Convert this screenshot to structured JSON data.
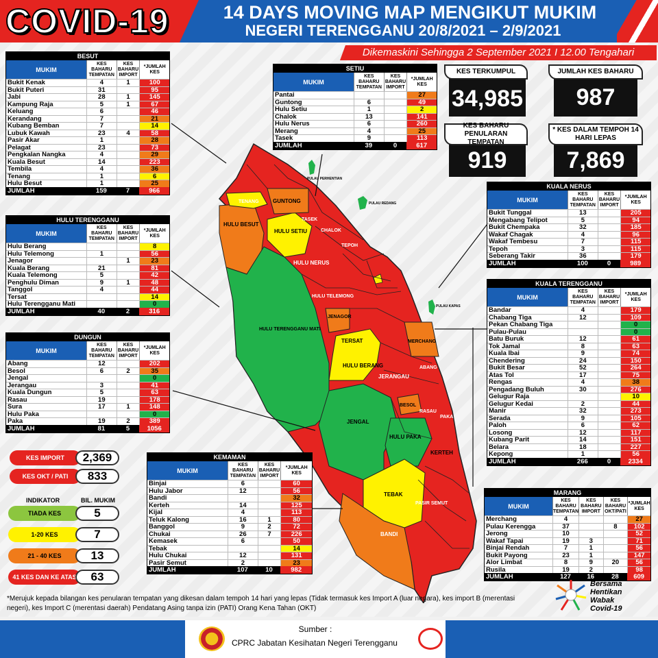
{
  "header": {
    "title": "COVID-19",
    "line1": "14 DAYS MOVING MAP MENGIKUT MUKIM",
    "line2": "NEGERI TERENGGANU 20/8/2021 – 2/9/2021",
    "updated": "Dikemaskini Sehingga 2 September 2021 I 12.00 Tengahari"
  },
  "columns": {
    "mukim": "MUKIM",
    "tempatan": "KES BAHARU TEMPATAN",
    "import": "KES BAHARU IMPORT",
    "okt": "KES BAHARU OKT/PATI",
    "jumlah": "*JUMLAH KES",
    "total_label": "JUMLAH"
  },
  "stats": {
    "terkumpul_label": "KES TERKUMPUL",
    "terkumpul": "34,985",
    "baharu_label": "JUMLAH KES BAHARU",
    "baharu": "987",
    "tempatan_label": "KES BAHARU PENULARAN TEMPATAN",
    "tempatan": "919",
    "tempoh_label": "* KES DALAM TEMPOH 14 HARI LEPAS",
    "tempoh": "7,869"
  },
  "side": {
    "import_label": "KES IMPORT",
    "import": "2,369",
    "okt_label": "KES OKT / PATI",
    "okt": "833",
    "indikator": "INDIKATOR",
    "bil": "BIL. MUKIM",
    "legend": [
      {
        "label": "TIADA KES",
        "count": "5",
        "color": "#8cc63f"
      },
      {
        "label": "1-20 KES",
        "count": "7",
        "color": "#fff200"
      },
      {
        "label": "21 - 40 KES",
        "count": "13",
        "color": "#f07b1a"
      },
      {
        "label": "41 KES DAN KE ATAS",
        "count": "63",
        "color": "#e52420"
      }
    ]
  },
  "tables": {
    "besut": {
      "title": "BESUT",
      "rows": [
        [
          "Bukit Kenak",
          "4",
          "1",
          "100",
          "r"
        ],
        [
          "Bukit Puteri",
          "31",
          "",
          "95",
          "r"
        ],
        [
          "Jabi",
          "28",
          "1",
          "145",
          "r"
        ],
        [
          "Kampung Raja",
          "5",
          "1",
          "67",
          "r"
        ],
        [
          "Keluang",
          "6",
          "",
          "46",
          "r"
        ],
        [
          "Kerandang",
          "7",
          "",
          "21",
          "o"
        ],
        [
          "Kubang Bemban",
          "7",
          "",
          "14",
          "y"
        ],
        [
          "Lubuk Kawah",
          "23",
          "4",
          "58",
          "r"
        ],
        [
          "Pasir Akar",
          "1",
          "",
          "28",
          "o"
        ],
        [
          "Pelagat",
          "23",
          "",
          "73",
          "r"
        ],
        [
          "Pengkalan Nangka",
          "4",
          "",
          "29",
          "o"
        ],
        [
          "Kuala Besut",
          "14",
          "",
          "223",
          "r"
        ],
        [
          "Tembila",
          "4",
          "",
          "36",
          "o"
        ],
        [
          "Tenang",
          "1",
          "",
          "6",
          "y"
        ],
        [
          "Hulu Besut",
          "1",
          "",
          "25",
          "o"
        ]
      ],
      "total": [
        "159",
        "7",
        "966"
      ]
    },
    "setiu": {
      "title": "SETIU",
      "rows": [
        [
          "Pantai",
          "",
          "",
          "27",
          "o"
        ],
        [
          "Guntong",
          "6",
          "",
          "49",
          "r"
        ],
        [
          "Hulu Setiu",
          "1",
          "",
          "2",
          "y"
        ],
        [
          "Chalok",
          "13",
          "",
          "141",
          "r"
        ],
        [
          "Hulu Nerus",
          "6",
          "",
          "260",
          "r"
        ],
        [
          "Merang",
          "4",
          "",
          "25",
          "o"
        ],
        [
          "Tasek",
          "9",
          "",
          "113",
          "r"
        ]
      ],
      "total": [
        "39",
        "0",
        "617"
      ]
    },
    "hulu_terengganu": {
      "title": "HULU TERENGGANU",
      "rows": [
        [
          "Hulu Berang",
          "",
          "",
          "8",
          "y"
        ],
        [
          "Hulu Telemong",
          "1",
          "",
          "56",
          "r"
        ],
        [
          "Jenagor",
          "",
          "1",
          "23",
          "o"
        ],
        [
          "Kuala Berang",
          "21",
          "",
          "81",
          "r"
        ],
        [
          "Kuala Telemong",
          "5",
          "",
          "42",
          "r"
        ],
        [
          "Penghulu Diman",
          "9",
          "1",
          "48",
          "r"
        ],
        [
          "Tanggol",
          "4",
          "",
          "44",
          "r"
        ],
        [
          "Tersat",
          "",
          "",
          "14",
          "y"
        ],
        [
          "Hulu Terengganu Mati",
          "",
          "",
          "0",
          "g"
        ]
      ],
      "total": [
        "40",
        "2",
        "316"
      ]
    },
    "dungun": {
      "title": "DUNGUN",
      "rows": [
        [
          "Abang",
          "12",
          "",
          "202",
          "r"
        ],
        [
          "Besol",
          "6",
          "2",
          "35",
          "o"
        ],
        [
          "Jengal",
          "",
          "",
          "0",
          "g"
        ],
        [
          "Jerangau",
          "3",
          "",
          "41",
          "r"
        ],
        [
          "Kuala Dungun",
          "5",
          "",
          "63",
          "r"
        ],
        [
          "Rasau",
          "19",
          "",
          "178",
          "r"
        ],
        [
          "Sura",
          "17",
          "1",
          "148",
          "r"
        ],
        [
          "Hulu Paka",
          "",
          "",
          "0",
          "g"
        ],
        [
          "Paka",
          "19",
          "2",
          "389",
          "r"
        ]
      ],
      "total": [
        "81",
        "5",
        "1056"
      ]
    },
    "kemaman": {
      "title": "KEMAMAN",
      "rows": [
        [
          "Binjai",
          "6",
          "",
          "60",
          "r"
        ],
        [
          "Hulu Jabor",
          "12",
          "",
          "56",
          "r"
        ],
        [
          "Bandi",
          "",
          "",
          "32",
          "o"
        ],
        [
          "Kerteh",
          "14",
          "",
          "125",
          "r"
        ],
        [
          "Kijal",
          "4",
          "",
          "113",
          "r"
        ],
        [
          "Teluk Kalong",
          "16",
          "1",
          "80",
          "r"
        ],
        [
          "Banggol",
          "9",
          "2",
          "72",
          "r"
        ],
        [
          "Chukai",
          "26",
          "7",
          "226",
          "r"
        ],
        [
          "Kemasek",
          "6",
          "",
          "50",
          "r"
        ],
        [
          "Tebak",
          "",
          "",
          "14",
          "y"
        ],
        [
          "Hulu Chukai",
          "12",
          "",
          "131",
          "r"
        ],
        [
          "Pasir Semut",
          "2",
          "",
          "23",
          "o"
        ]
      ],
      "total": [
        "107",
        "10",
        "982"
      ]
    },
    "kuala_nerus": {
      "title": "KUALA NERUS",
      "rows": [
        [
          "Bukit Tunggal",
          "13",
          "",
          "205",
          "r"
        ],
        [
          "Mengabang Telipot",
          "5",
          "",
          "94",
          "r"
        ],
        [
          "Bukit Chempaka",
          "32",
          "",
          "185",
          "r"
        ],
        [
          "Wakaf Chagak",
          "4",
          "",
          "96",
          "r"
        ],
        [
          "Wakaf Tembesu",
          "7",
          "",
          "115",
          "r"
        ],
        [
          "Tepoh",
          "3",
          "",
          "115",
          "r"
        ],
        [
          "Seberang Takir",
          "36",
          "",
          "179",
          "r"
        ]
      ],
      "total": [
        "100",
        "0",
        "989"
      ]
    },
    "kuala_terengganu": {
      "title": "KUALA TERENGGANU",
      "rows": [
        [
          "Bandar",
          "4",
          "",
          "179",
          "r"
        ],
        [
          "Chabang Tiga",
          "12",
          "",
          "109",
          "r"
        ],
        [
          "Pekan Chabang Tiga",
          "",
          "",
          "0",
          "g"
        ],
        [
          "Pulau-Pulau",
          "",
          "",
          "0",
          "g"
        ],
        [
          "Batu Buruk",
          "12",
          "",
          "61",
          "r"
        ],
        [
          "Tok Jamal",
          "8",
          "",
          "63",
          "r"
        ],
        [
          "Kuala Ibai",
          "9",
          "",
          "74",
          "r"
        ],
        [
          "Chendering",
          "24",
          "",
          "150",
          "r"
        ],
        [
          "Bukit Besar",
          "52",
          "",
          "264",
          "r"
        ],
        [
          "Atas Tol",
          "17",
          "",
          "75",
          "r"
        ],
        [
          "Rengas",
          "4",
          "",
          "38",
          "o"
        ],
        [
          "Pengadang Buluh",
          "30",
          "",
          "276",
          "r"
        ],
        [
          "Gelugur Raja",
          "",
          "",
          "10",
          "y"
        ],
        [
          "Gelugur Kedai",
          "2",
          "",
          "44",
          "r"
        ],
        [
          "Manir",
          "32",
          "",
          "273",
          "r"
        ],
        [
          "Serada",
          "9",
          "",
          "105",
          "r"
        ],
        [
          "Paloh",
          "6",
          "",
          "62",
          "r"
        ],
        [
          "Losong",
          "12",
          "",
          "117",
          "r"
        ],
        [
          "Kubang Parit",
          "14",
          "",
          "151",
          "r"
        ],
        [
          "Belara",
          "18",
          "",
          "227",
          "r"
        ],
        [
          "Kepong",
          "1",
          "",
          "56",
          "r"
        ]
      ],
      "total": [
        "266",
        "0",
        "2334"
      ]
    },
    "marang": {
      "title": "MARANG",
      "rows": [
        [
          "Merchang",
          "4",
          "",
          "",
          "27",
          "o"
        ],
        [
          "Pulau Kerengga",
          "37",
          "",
          "8",
          "102",
          "r"
        ],
        [
          "Jerong",
          "10",
          "",
          "",
          "52",
          "r"
        ],
        [
          "Wakaf Tapai",
          "19",
          "3",
          "",
          "71",
          "r"
        ],
        [
          "Binjai Rendah",
          "7",
          "1",
          "",
          "56",
          "r"
        ],
        [
          "Bukit Payong",
          "23",
          "1",
          "",
          "147",
          "r"
        ],
        [
          "Alor Limbat",
          "8",
          "9",
          "20",
          "56",
          "r"
        ],
        [
          "Rusila",
          "19",
          "2",
          "",
          "98",
          "r"
        ]
      ],
      "total": [
        "127",
        "16",
        "28",
        "609"
      ]
    }
  },
  "map_labels": {
    "hulu_besut": "HULU BESUT",
    "hulu_setiu": "HULU SETIU",
    "guntong": "GUNTONG",
    "hulu_nerus": "HULU NERUS",
    "hulu_terengganu_mati": "HULU TERENGGANU MATI",
    "jengal": "JENGAL",
    "jerangau": "JERANGAU",
    "hulu_paka": "HULU PAKA",
    "kerteh": "KERTEH",
    "tebak": "TEBAK",
    "bandi": "BANDI",
    "tersat": "TERSAT",
    "hulu_berang": "HULU BERANG",
    "jenagor": "JENAGOR",
    "hulu_telemong": "HULU TELEMONG",
    "tenang": "TENANG",
    "tasek": "TASEK",
    "chalok": "CHALOK",
    "tepoh": "TEPOH",
    "besol": "BESOL",
    "rasau": "RASAU",
    "paka": "PAKA",
    "abang": "ABANG",
    "merchang": "MERCHANG",
    "pasir_semut": "PASIR SEMUT",
    "pulau_perhentian": "PULAU PERHENTIAN",
    "pulau_redang": "PULAU REDANG",
    "pulau_kapas": "PULAU KAPAS"
  },
  "note": "*Merujuk kepada bilangan kes penularan tempatan yang dikesan dalam tempoh 14 hari yang lepas (Tidak termasuk kes Import A (luar negara), kes import B (merentasi negeri), kes Import C (merentasi daerah) Pendatang Asing tanpa izin (PATI) Orang Kena Tahan (OKT)",
  "footer": {
    "sumber": "Sumber :",
    "source": "CPRC Jabatan Kesihatan Negeri Terengganu"
  },
  "logo": {
    "l1": "Bersama",
    "l2": "Hentikan",
    "l3": "Wabak",
    "l4": "Covid-19"
  }
}
